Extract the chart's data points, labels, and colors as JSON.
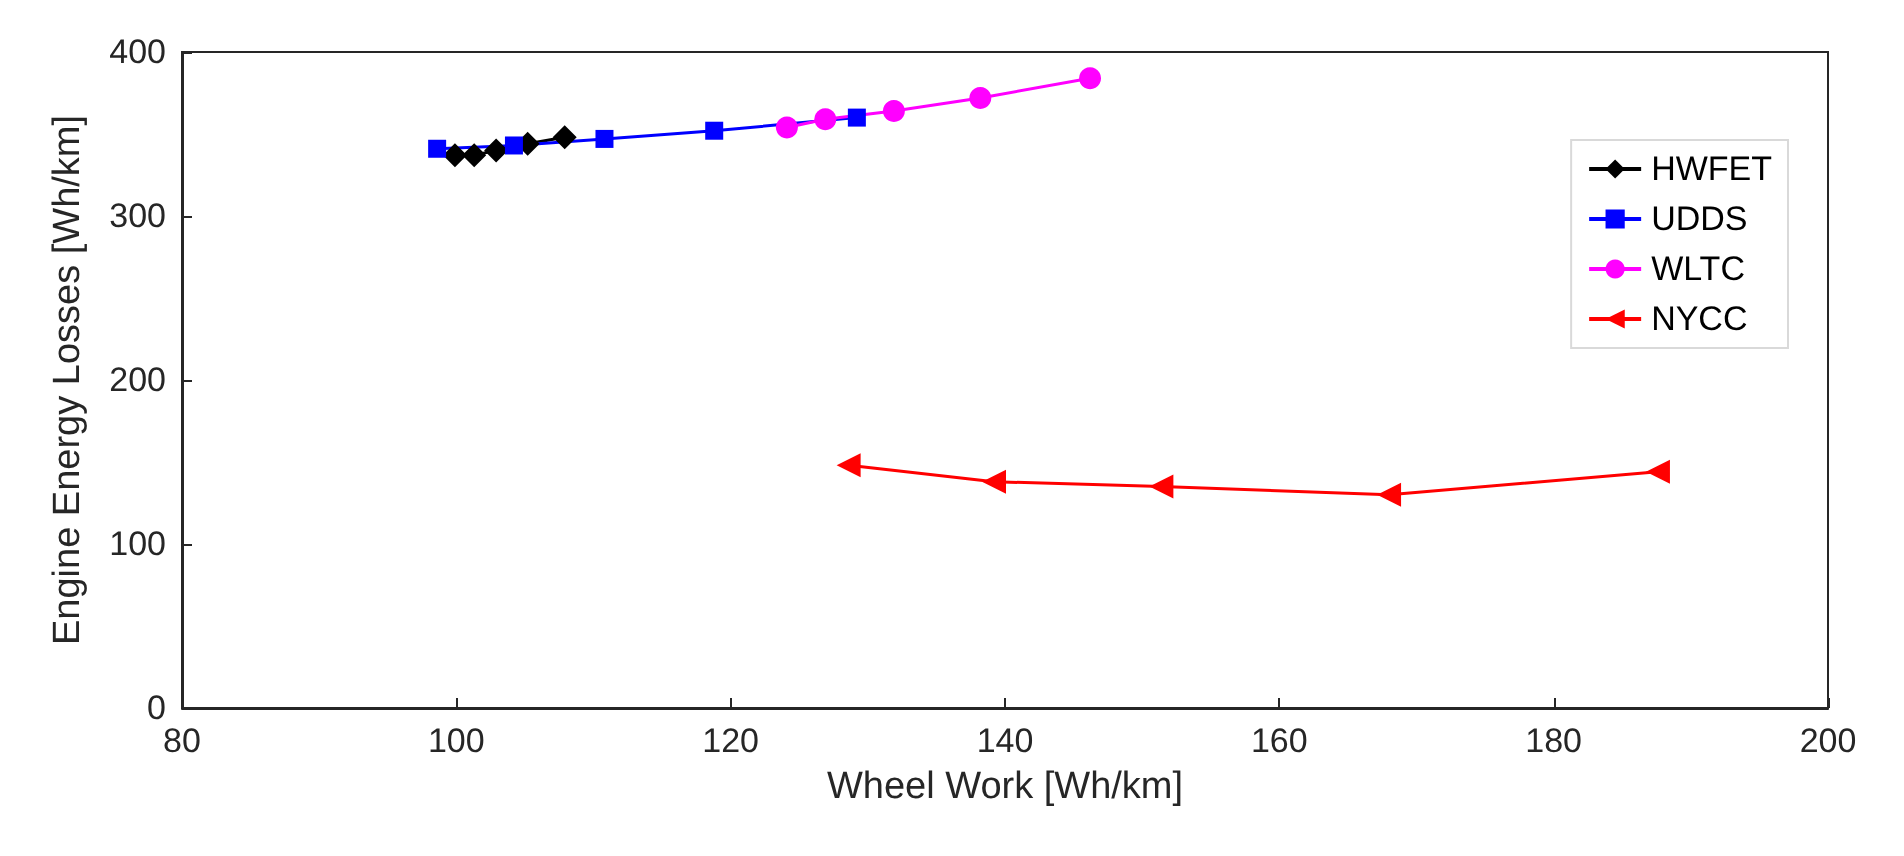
{
  "chart_data": {
    "type": "line",
    "xlabel": "Wheel Work [Wh/km]",
    "ylabel": "Engine Energy Losses [Wh/km]",
    "xlim": [
      80,
      200
    ],
    "xticks": [
      80,
      100,
      120,
      140,
      160,
      180,
      200
    ],
    "ylim": [
      0,
      400
    ],
    "yticks": [
      0,
      100,
      200,
      300,
      400
    ],
    "grid": false,
    "legend": "top right",
    "series": [
      {
        "name": "HWFET",
        "color": "#000000",
        "marker": "diamond",
        "x": [
          99.9,
          101.3,
          102.9,
          105.2,
          107.9
        ],
        "values": [
          337,
          337,
          340,
          344,
          348
        ]
      },
      {
        "name": "UDDS",
        "color": "#0000ff",
        "marker": "square",
        "x": [
          98.6,
          104.2,
          110.8,
          118.8,
          129.2
        ],
        "values": [
          341,
          343,
          347,
          352,
          360
        ]
      },
      {
        "name": "WLTC",
        "color": "#ff00ff",
        "marker": "circle",
        "x": [
          124.1,
          126.9,
          131.9,
          138.2,
          146.2
        ],
        "values": [
          354,
          359,
          364,
          372,
          384
        ]
      },
      {
        "name": "NYCC",
        "color": "#ff0000",
        "marker": "triangle",
        "x": [
          128.6,
          139.2,
          151.4,
          168,
          187.6
        ],
        "values": [
          148,
          138,
          135,
          130,
          144
        ]
      }
    ]
  }
}
